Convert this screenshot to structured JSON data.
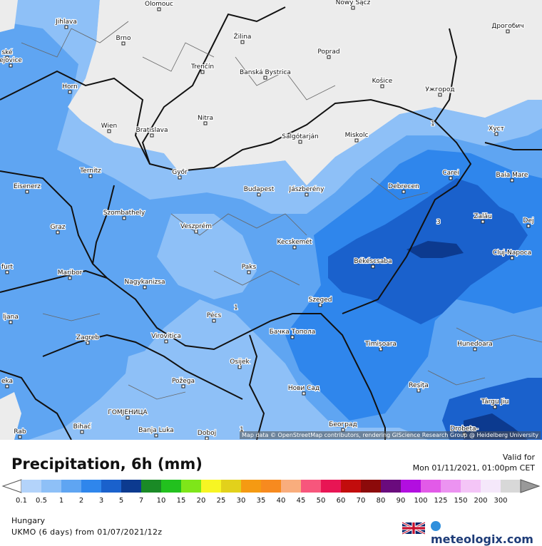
{
  "header": {
    "title": "Precipitation, 6h (mm)",
    "valid_label": "Valid for",
    "valid_time": "Mon 01/11/2021, 01:00pm CET"
  },
  "footer": {
    "region": "Hungary",
    "model": "UKMO (6 days) from 01/07/2021/12z",
    "brand": "meteologix.com"
  },
  "map": {
    "attribution": "Map data © OpenStreetMap contributors, rendering GIScience Research Group @ Heidelberg University",
    "contour_labels": [
      "1",
      "3",
      "1",
      "1"
    ],
    "cities": [
      {
        "name": "Olomouc"
      },
      {
        "name": "Nowy Sącz"
      },
      {
        "name": "Jihlava"
      },
      {
        "name": "Дрогобич"
      },
      {
        "name": "Brno"
      },
      {
        "name": "Žilina"
      },
      {
        "name": "Poprad"
      },
      {
        "name": "ské"
      },
      {
        "name": "ejovice"
      },
      {
        "name": "Trenčín"
      },
      {
        "name": "Banská Bystrica"
      },
      {
        "name": "Horn"
      },
      {
        "name": "Košice"
      },
      {
        "name": "Ужгород"
      },
      {
        "name": "Nitra"
      },
      {
        "name": "Wien"
      },
      {
        "name": "Bratislava"
      },
      {
        "name": "Salgótarján"
      },
      {
        "name": "Miskolc"
      },
      {
        "name": "Хуст"
      },
      {
        "name": "Ternitz"
      },
      {
        "name": "Győr"
      },
      {
        "name": "Carei"
      },
      {
        "name": "Baia Mare"
      },
      {
        "name": "Eisenerz"
      },
      {
        "name": "Budapest"
      },
      {
        "name": "Jászberény"
      },
      {
        "name": "Debrecen"
      },
      {
        "name": "Szombathely"
      },
      {
        "name": "Zalău"
      },
      {
        "name": "Graz"
      },
      {
        "name": "Veszprém"
      },
      {
        "name": "Dej"
      },
      {
        "name": "Kecskemét"
      },
      {
        "name": "Cluj-Napoca"
      },
      {
        "name": "Békéscsaba"
      },
      {
        "name": "Maribor"
      },
      {
        "name": "Paks"
      },
      {
        "name": "furt"
      },
      {
        "name": "Nagykanizsa"
      },
      {
        "name": "Szeged"
      },
      {
        "name": "Pécs"
      },
      {
        "name": "ljana"
      },
      {
        "name": "Бачка Топола"
      },
      {
        "name": "Zagreb"
      },
      {
        "name": "Virovitica"
      },
      {
        "name": "Timișoara"
      },
      {
        "name": "Hunedoara"
      },
      {
        "name": "Osijek"
      },
      {
        "name": "Požega"
      },
      {
        "name": "Reșița"
      },
      {
        "name": "Нови Сад"
      },
      {
        "name": "eka"
      },
      {
        "name": "Târgu Jiu"
      },
      {
        "name": "ГОМЈЕНИЦА"
      },
      {
        "name": "Bihać"
      },
      {
        "name": "Београд"
      },
      {
        "name": "Rab"
      },
      {
        "name": "Banja Luka"
      },
      {
        "name": "Doboj"
      },
      {
        "name": "Drobeta-"
      }
    ]
  },
  "legend": {
    "ticks": [
      "0.1",
      "0.5",
      "1",
      "2",
      "3",
      "5",
      "7",
      "10",
      "15",
      "20",
      "25",
      "30",
      "35",
      "40",
      "45",
      "50",
      "60",
      "70",
      "80",
      "90",
      "100",
      "125",
      "150",
      "200",
      "300"
    ],
    "colors": [
      "#b3d3fa",
      "#8ec0f7",
      "#5fa5f2",
      "#2f86ec",
      "#1a61cc",
      "#0c3a8f",
      "#1a8a26",
      "#22c11e",
      "#7ee619",
      "#f7f523",
      "#e2d11b",
      "#f59a12",
      "#f78a1f",
      "#f9ad7d",
      "#f7567c",
      "#e81554",
      "#c20c0c",
      "#8c0a0a",
      "#6a0b7d",
      "#b20ee0",
      "#e25ae8",
      "#ec93f1",
      "#f4c5f7",
      "#f5e8fa",
      "#d8d8d8"
    ]
  }
}
